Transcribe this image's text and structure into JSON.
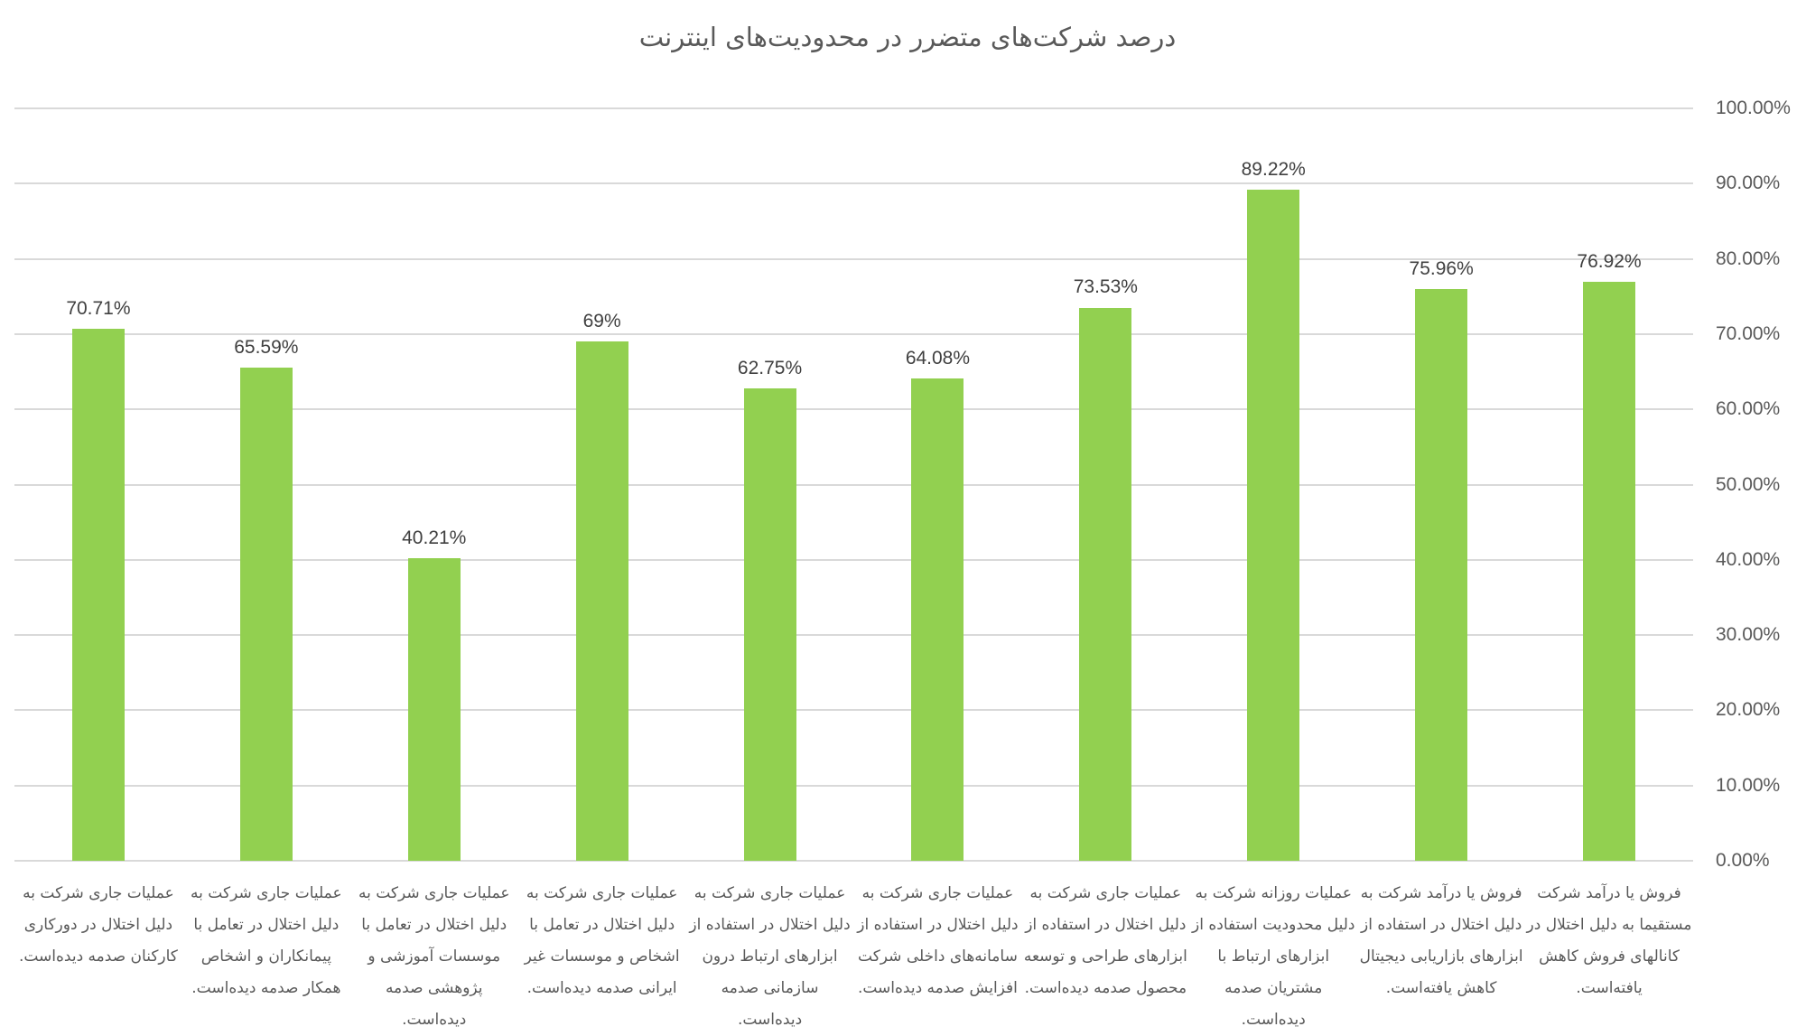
{
  "chart_data": {
    "type": "bar",
    "title": "درصد شرکت‌های متضرر در محدودیت‌های اینترنت",
    "xlabel": "",
    "ylabel": "",
    "ylim": [
      0,
      100
    ],
    "y_axis_position": "right",
    "grid": true,
    "legend": null,
    "y_ticks": [
      "0.00%",
      "10.00%",
      "20.00%",
      "30.00%",
      "40.00%",
      "50.00%",
      "60.00%",
      "70.00%",
      "80.00%",
      "90.00%",
      "100.00%"
    ],
    "categories": [
      "عملیات جاری شرکت به دلیل اختلال در دورکاری کارکنان صدمه دیده‌است.",
      "عملیات جاری شرکت به دلیل اختلال در تعامل با پیمانکاران و اشخاص همکار صدمه دیده‌است.",
      "عملیات جاری شرکت به دلیل اختلال در تعامل با موسسات آموزشی و پژوهشی صدمه دیده‌است.",
      "عملیات جاری شرکت به دلیل اختلال در تعامل با اشخاص و موسسات غیر ایرانی صدمه دیده‌است.",
      "عملیات جاری شرکت به دلیل اختلال در استفاده از ابزارهای ارتباط درون سازمانی صدمه دیده‌است.",
      "عملیات جاری شرکت به دلیل اختلال در استفاده از سامانه‌های داخلی شرکت افزایش صدمه دیده‌است.",
      "عملیات جاری شرکت به دلیل اختلال در استفاده از ابزارهای طراحی و توسعه محصول صدمه دیده‌است.",
      "عملیات روزانه شرکت به دلیل محدودیت استفاده از ابزارهای ارتباط با مشتریان صدمه دیده‌است.",
      "فروش یا درآمد شرکت به دلیل اختلال در استفاده از ابزارهای بازاریابی دیجیتال کاهش یافته‌است.",
      "فروش یا درآمد شرکت مستقیما به دلیل اختلال در کانالهای فروش کاهش یافته‌است."
    ],
    "values": [
      70.71,
      65.59,
      40.21,
      69,
      62.75,
      64.08,
      73.53,
      89.22,
      75.96,
      76.92
    ],
    "data_labels": [
      "70.71%",
      "65.59%",
      "40.21%",
      "69%",
      "62.75%",
      "64.08%",
      "73.53%",
      "89.22%",
      "75.96%",
      "76.92%"
    ],
    "bar_color": "#92D050"
  }
}
